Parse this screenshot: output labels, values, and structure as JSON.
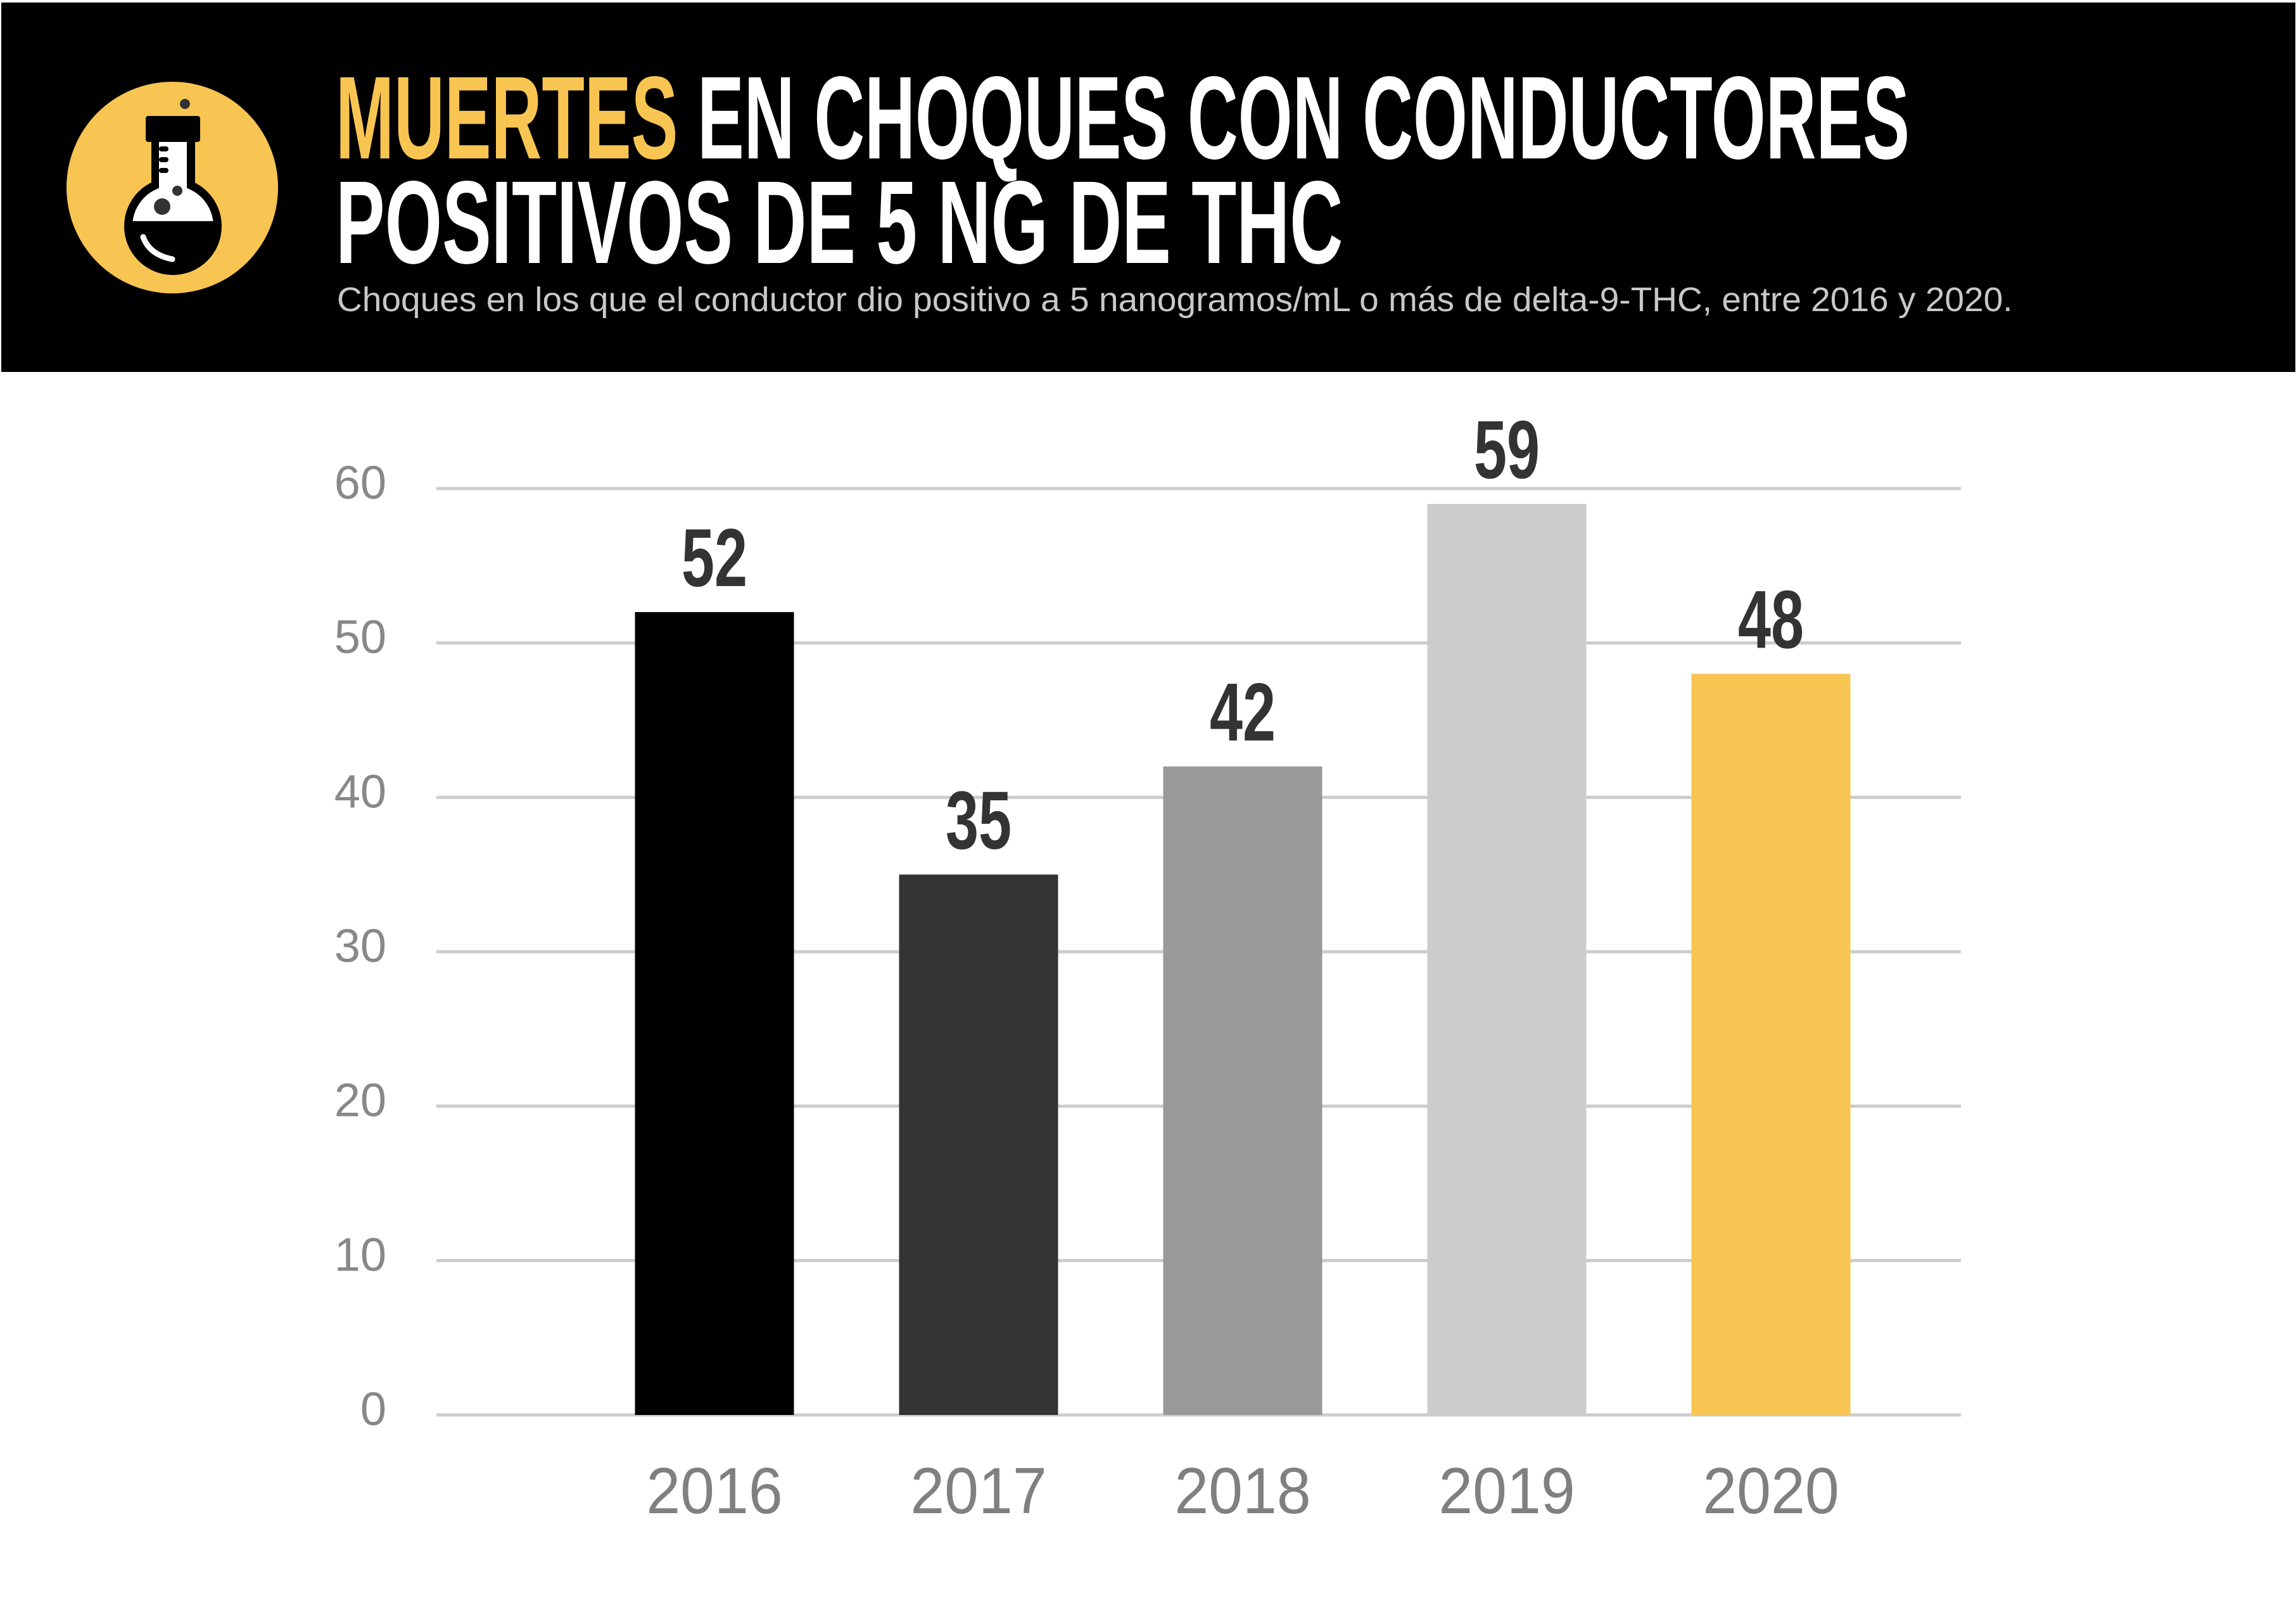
{
  "header": {
    "title_accent": "MUERTES",
    "title_rest_line1": " EN CHOQUES CON CONDUCTORES",
    "title_line2": "POSITIVOS DE 5 NG DE THC",
    "subtitle": "Choques en los que el conductor dio positivo a 5 nanogramos/mL o más de delta-9-THC, entre 2016 y 2020.",
    "icon": "flask-icon"
  },
  "colors": {
    "header_bg": "#000000",
    "accent": "#F8C552",
    "gridline": "#CCCCCC",
    "axis_text": "#888888",
    "data_label": "#333333"
  },
  "chart_data": {
    "type": "bar",
    "title": "MUERTES EN CHOQUES CON CONDUCTORES POSITIVOS DE 5 NG DE THC",
    "subtitle": "Choques en los que el conductor dio positivo a 5 nanogramos/mL o más de delta-9-THC, entre 2016 y 2020.",
    "xlabel": "",
    "ylabel": "",
    "categories": [
      "2016",
      "2017",
      "2018",
      "2019",
      "2020"
    ],
    "values": [
      52,
      35,
      42,
      59,
      48
    ],
    "bar_colors": [
      "#000000",
      "#333333",
      "#999999",
      "#CCCCCC",
      "#F8C552"
    ],
    "data_labels": [
      "52",
      "35",
      "42",
      "59",
      "48"
    ],
    "ylim": [
      0,
      60
    ],
    "yticks": [
      0,
      10,
      20,
      30,
      40,
      50,
      60
    ],
    "ytick_labels": [
      "0",
      "10",
      "20",
      "30",
      "40",
      "50",
      "60"
    ],
    "grid": true,
    "legend": "none"
  }
}
